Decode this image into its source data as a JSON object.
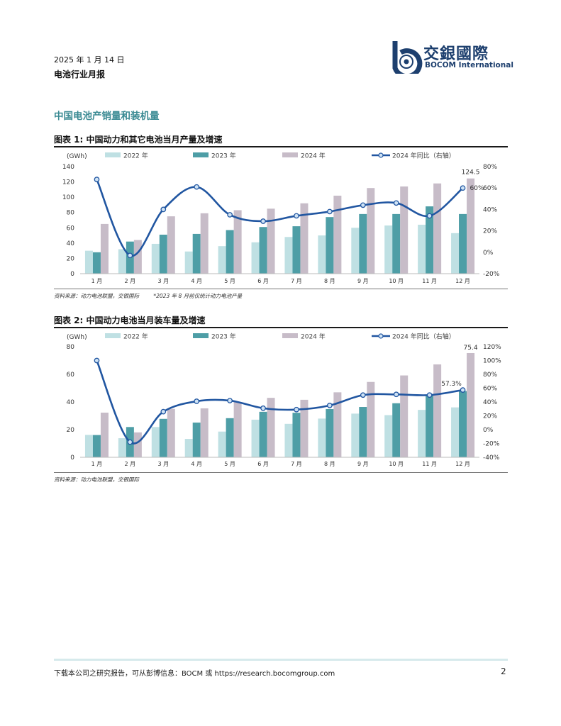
{
  "header": {
    "date": "2025 年 1 月 14 日",
    "report_name": "电池行业月报",
    "logo_cn": "交銀國際",
    "logo_en": "BOCOM International"
  },
  "section_title": "中国电池产销量和装机量",
  "colors": {
    "s2022": "#bfe0e3",
    "s2023": "#4e9ea6",
    "s2024": "#c7bcc8",
    "yoy_line": "#2156a1",
    "section": "#3a8a93"
  },
  "figures": [
    {
      "title": "图表 1: 中国动力和其它电池当月产量及增速",
      "source": "资料来源：动力电池联盟，交银国际",
      "note": "*2023 年 8 月前仅统计动力电池产量"
    },
    {
      "title": "图表 2: 中国动力电池当月装车量及增速",
      "source": "资料来源：动力电池联盟，交银国际",
      "note": ""
    }
  ],
  "chart_data": [
    {
      "type": "bar",
      "unit_label": "(GWh)",
      "categories": [
        "1 月",
        "2 月",
        "3 月",
        "4 月",
        "5 月",
        "6 月",
        "7 月",
        "8 月",
        "9 月",
        "10 月",
        "11 月",
        "12 月"
      ],
      "series": [
        {
          "name": "2022 年",
          "kind": "bar",
          "axis": "left",
          "values": [
            30,
            32,
            39,
            29,
            36,
            41,
            48,
            50,
            60,
            63,
            64,
            53
          ]
        },
        {
          "name": "2023 年",
          "kind": "bar",
          "axis": "left",
          "values": [
            28,
            42,
            51,
            52,
            57,
            61,
            62,
            74,
            78,
            78,
            88,
            78
          ]
        },
        {
          "name": "2024 年",
          "kind": "bar",
          "axis": "left",
          "values": [
            65,
            44,
            75,
            79,
            83,
            85,
            92,
            102,
            112,
            114,
            118,
            124.5
          ]
        },
        {
          "name": "2024 年同比（右轴）",
          "kind": "line",
          "axis": "right",
          "values": [
            68,
            -3,
            40,
            61,
            35,
            29,
            34,
            38,
            44,
            46,
            34,
            60
          ]
        }
      ],
      "ylim": [
        0,
        140
      ],
      "y_ticks": [
        0,
        20,
        40,
        60,
        80,
        100,
        120,
        140
      ],
      "y2lim": [
        -20,
        80
      ],
      "y2_ticks": [
        "-20%",
        "0%",
        "20%",
        "40%",
        "60%",
        "80%"
      ],
      "annotations": [
        "124.5",
        "60%"
      ]
    },
    {
      "type": "bar",
      "unit_label": "(GWh)",
      "categories": [
        "1 月",
        "2 月",
        "3 月",
        "4 月",
        "5 月",
        "6 月",
        "7 月",
        "8 月",
        "9 月",
        "10 月",
        "11 月",
        "12 月"
      ],
      "series": [
        {
          "name": "2022 年",
          "kind": "bar",
          "axis": "left",
          "values": [
            16.2,
            13.8,
            21.9,
            13.3,
            18.6,
            27.2,
            24.2,
            28.0,
            31.6,
            30.5,
            34.3,
            36.1
          ]
        },
        {
          "name": "2023 年",
          "kind": "bar",
          "axis": "left",
          "values": [
            16.1,
            21.9,
            27.8,
            25.1,
            28.3,
            32.9,
            32.2,
            34.9,
            36.4,
            39.1,
            44.9,
            47.9
          ]
        },
        {
          "name": "2024 年",
          "kind": "bar",
          "axis": "left",
          "values": [
            32.3,
            18.0,
            35.0,
            35.4,
            40.0,
            43.0,
            41.6,
            47.0,
            54.5,
            59.2,
            67.2,
            75.4
          ]
        },
        {
          "name": "2024 年同比（右轴）",
          "kind": "line",
          "axis": "right",
          "values": [
            100,
            -18,
            26,
            41,
            42,
            31,
            29,
            35,
            50,
            51,
            50,
            57.3
          ]
        }
      ],
      "ylim": [
        0,
        80
      ],
      "y_ticks": [
        0,
        20,
        40,
        60,
        80
      ],
      "y2lim": [
        -40,
        120
      ],
      "y2_ticks": [
        "-40%",
        "-20%",
        "0%",
        "20%",
        "40%",
        "60%",
        "80%",
        "100%",
        "120%"
      ],
      "annotations": [
        "75.4",
        "57.3%"
      ]
    }
  ],
  "footer": {
    "text": "下载本公司之研究报告，可从彭博信息：BOCM 或 https://research.bocomgroup.com",
    "page": "2"
  }
}
